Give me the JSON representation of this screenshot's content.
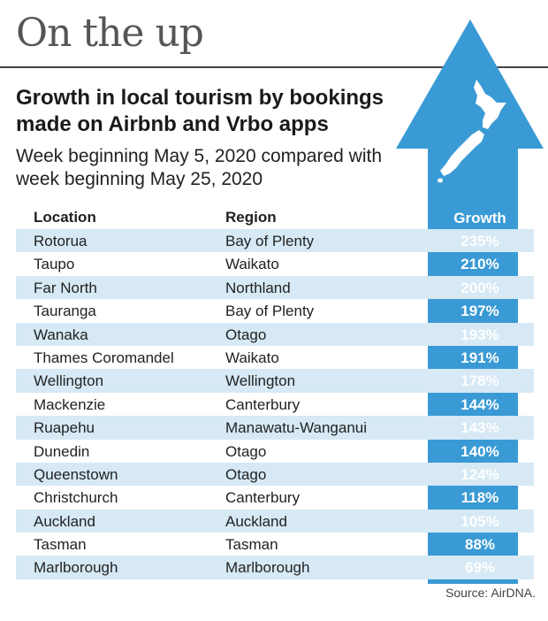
{
  "headline": "On the up",
  "title": "Growth in local tourism by bookings made on Airbnb and Vrbo apps",
  "subtitle": "Week beginning May 5, 2020 compared with week beginning May 25, 2020",
  "columns": [
    "Location",
    "Region",
    "Growth"
  ],
  "source": "Source: AirDNA.",
  "colors": {
    "arrow": "#3a9ad5",
    "row_stripe": "#d6e9f5",
    "map": "#ffffff"
  },
  "icons": {
    "arrow": "up-arrow-icon",
    "map": "new-zealand-map-icon"
  },
  "chart_data": {
    "type": "table",
    "title": "Growth in local tourism by bookings made on Airbnb and Vrbo apps",
    "subtitle": "Week beginning May 5, 2020 compared with week beginning May 25, 2020",
    "columns": [
      "Location",
      "Region",
      "Growth"
    ],
    "rows": [
      {
        "location": "Rotorua",
        "region": "Bay of Plenty",
        "growth": "235%"
      },
      {
        "location": "Taupo",
        "region": "Waikato",
        "growth": "210%"
      },
      {
        "location": "Far North",
        "region": "Northland",
        "growth": "200%"
      },
      {
        "location": "Tauranga",
        "region": "Bay of Plenty",
        "growth": "197%"
      },
      {
        "location": "Wanaka",
        "region": "Otago",
        "growth": "193%"
      },
      {
        "location": "Thames Coromandel",
        "region": "Waikato",
        "growth": "191%"
      },
      {
        "location": "Wellington",
        "region": "Wellington",
        "growth": "178%"
      },
      {
        "location": "Mackenzie",
        "region": "Canterbury",
        "growth": "144%"
      },
      {
        "location": "Ruapehu",
        "region": "Manawatu-Wanganui",
        "growth": "143%"
      },
      {
        "location": "Dunedin",
        "region": "Otago",
        "growth": "140%"
      },
      {
        "location": "Queenstown",
        "region": "Otago",
        "growth": "124%"
      },
      {
        "location": "Christchurch",
        "region": "Canterbury",
        "growth": "118%"
      },
      {
        "location": "Auckland",
        "region": "Auckland",
        "growth": "105%"
      },
      {
        "location": "Tasman",
        "region": "Tasman",
        "growth": "88%"
      },
      {
        "location": "Marlborough",
        "region": "Marlborough",
        "growth": "69%"
      }
    ]
  }
}
